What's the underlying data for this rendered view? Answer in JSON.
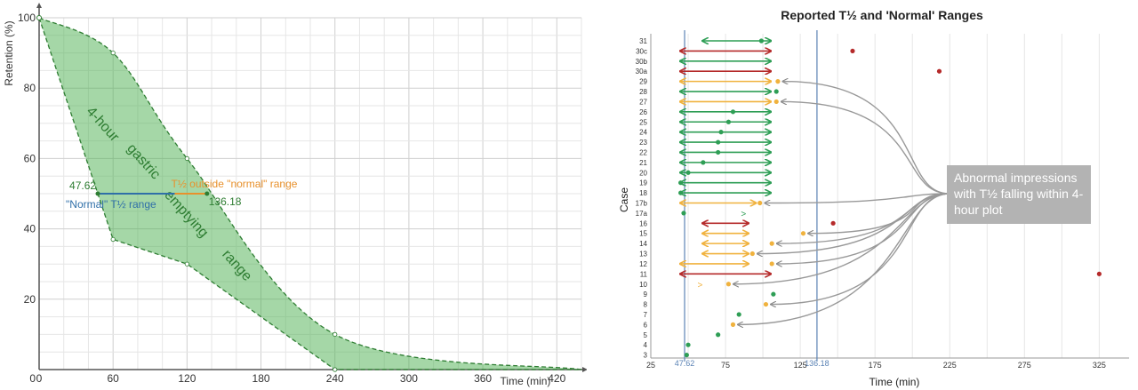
{
  "chart_data": [
    {
      "type": "area",
      "title": "",
      "xlabel": "Time (min)",
      "ylabel": "Retention (%)",
      "xlim": [
        0,
        440
      ],
      "ylim": [
        0,
        100
      ],
      "x_ticks": [
        "0",
        "60",
        "120",
        "180",
        "240",
        "300",
        "360",
        "420"
      ],
      "x_tick_values": [
        0,
        60,
        120,
        180,
        240,
        300,
        360,
        420
      ],
      "y_ticks": [
        "20",
        "40",
        "60",
        "80",
        "100"
      ],
      "y_tick_values": [
        20,
        40,
        60,
        80,
        100
      ],
      "grid": true,
      "band_color": "#4caf50",
      "band_edge_color": "#2e7d32",
      "band_label": "4-hour gastric emptying range",
      "band_label_words": [
        "4-hour",
        "gastric",
        "emptying",
        "range"
      ],
      "band_upper": [
        [
          0,
          100
        ],
        [
          60,
          90
        ],
        [
          120,
          60
        ],
        [
          240,
          10
        ],
        [
          440,
          0
        ]
      ],
      "band_lower": [
        [
          0,
          100
        ],
        [
          60,
          37
        ],
        [
          120,
          30
        ],
        [
          240,
          0
        ],
        [
          440,
          0
        ]
      ],
      "normal_range": {
        "from": 47.62,
        "to": 136.18,
        "y": 50,
        "label": "\"Normal\" T½ range",
        "low_label": "47.62",
        "high_label": "136.18",
        "color": "#2f6fa8"
      },
      "outside_segment": {
        "from": 110,
        "to": 136.18,
        "y": 50,
        "label": "T½ outside \"normal\" range",
        "color": "#e8912c"
      }
    },
    {
      "type": "scatter",
      "title": "Reported T½ and 'Normal' Ranges",
      "xlabel": "Time (min)",
      "ylabel": "Case",
      "xlim": [
        25,
        345
      ],
      "x_ticks": [
        "25",
        "75",
        "125",
        "175",
        "225",
        "275",
        "325"
      ],
      "x_tick_values": [
        25,
        75,
        125,
        175,
        225,
        275,
        325
      ],
      "ref_lines": [
        {
          "value": 47.62,
          "label": "47.62"
        },
        {
          "value": 136.18,
          "label": "136.18"
        }
      ],
      "ref_color": "#5b83b5",
      "cases": [
        {
          "case": "31",
          "range": [
            60,
            105
          ],
          "range_color": "green",
          "t_half": 99,
          "dot_color": "green"
        },
        {
          "case": "30c",
          "range": [
            45,
            105
          ],
          "range_color": "red",
          "t_half": 160,
          "dot_color": "red"
        },
        {
          "case": "30b",
          "range": [
            45,
            105
          ],
          "range_color": "green",
          "t_half": null,
          "dot_color": null
        },
        {
          "case": "30a",
          "range": [
            45,
            105
          ],
          "range_color": "red",
          "t_half": 218,
          "dot_color": "red"
        },
        {
          "case": "29",
          "range": [
            45,
            105
          ],
          "range_color": "orange",
          "t_half": 110,
          "dot_color": "orange"
        },
        {
          "case": "28",
          "range": [
            45,
            105
          ],
          "range_color": "green",
          "t_half": 109,
          "dot_color": "green"
        },
        {
          "case": "27",
          "range": [
            45,
            105
          ],
          "range_color": "orange",
          "t_half": 109,
          "dot_color": "orange"
        },
        {
          "case": "26",
          "range": [
            45,
            105
          ],
          "range_color": "green",
          "t_half": 80,
          "dot_color": "green"
        },
        {
          "case": "25",
          "range": [
            45,
            105
          ],
          "range_color": "green",
          "t_half": 77,
          "dot_color": "green"
        },
        {
          "case": "24",
          "range": [
            45,
            105
          ],
          "range_color": "green",
          "t_half": 72,
          "dot_color": "green"
        },
        {
          "case": "23",
          "range": [
            45,
            105
          ],
          "range_color": "green",
          "t_half": 70,
          "dot_color": "green"
        },
        {
          "case": "22",
          "range": [
            45,
            105
          ],
          "range_color": "green",
          "t_half": 70,
          "dot_color": "green"
        },
        {
          "case": "21",
          "range": [
            45,
            105
          ],
          "range_color": "green",
          "t_half": 60,
          "dot_color": "green"
        },
        {
          "case": "20",
          "range": [
            45,
            105
          ],
          "range_color": "green",
          "t_half": 50,
          "dot_color": "green"
        },
        {
          "case": "19",
          "range": [
            45,
            105
          ],
          "range_color": "green",
          "t_half": 45,
          "dot_color": "green"
        },
        {
          "case": "18",
          "range": [
            45,
            105
          ],
          "range_color": "green",
          "t_half": 45,
          "dot_color": "green"
        },
        {
          "case": "17b",
          "range": [
            45,
            95
          ],
          "range_color": "orange",
          "t_half": 98,
          "dot_color": "orange"
        },
        {
          "case": "17a",
          "range": null,
          "range_color": null,
          "t_half": 47,
          "dot_color": "green",
          "marker": {
            "x": 87,
            "color": "green"
          }
        },
        {
          "case": "16",
          "range": [
            60,
            90
          ],
          "range_color": "red",
          "t_half": 147,
          "dot_color": "red"
        },
        {
          "case": "15",
          "range": [
            60,
            90
          ],
          "range_color": "orange",
          "t_half": 127,
          "dot_color": "orange"
        },
        {
          "case": "14",
          "range": [
            60,
            90
          ],
          "range_color": "orange",
          "t_half": 106,
          "dot_color": "orange"
        },
        {
          "case": "13",
          "range": [
            60,
            90
          ],
          "range_color": "orange",
          "t_half": 93,
          "dot_color": "orange"
        },
        {
          "case": "12",
          "range": [
            45,
            90
          ],
          "range_color": "orange",
          "t_half": 106,
          "dot_color": "orange"
        },
        {
          "case": "11",
          "range": [
            45,
            105
          ],
          "range_color": "red",
          "t_half": 325,
          "dot_color": "red"
        },
        {
          "case": "10",
          "range": null,
          "range_color": null,
          "t_half": 77,
          "dot_color": "orange",
          "marker": {
            "x": 58,
            "color": "orange"
          }
        },
        {
          "case": "9",
          "range": null,
          "range_color": null,
          "t_half": 107,
          "dot_color": "green"
        },
        {
          "case": "8",
          "range": null,
          "range_color": null,
          "t_half": 102,
          "dot_color": "orange"
        },
        {
          "case": "7",
          "range": null,
          "range_color": null,
          "t_half": 84,
          "dot_color": "green"
        },
        {
          "case": "6",
          "range": null,
          "range_color": null,
          "t_half": 80,
          "dot_color": "orange"
        },
        {
          "case": "5",
          "range": null,
          "range_color": null,
          "t_half": 70,
          "dot_color": "green"
        },
        {
          "case": "4",
          "range": null,
          "range_color": null,
          "t_half": 50,
          "dot_color": "green"
        },
        {
          "case": "3",
          "range": null,
          "range_color": null,
          "t_half": 49,
          "dot_color": "green"
        }
      ],
      "colors": {
        "green": "#2e9e55",
        "red": "#b52a2a",
        "orange": "#f0b23e"
      },
      "annotation": {
        "text": "Abnormal impressions with T½ falling within 4-hour plot",
        "targets": [
          "29",
          "27",
          "17b",
          "15",
          "14",
          "13",
          "12",
          "10",
          "8",
          "6"
        ]
      }
    }
  ]
}
